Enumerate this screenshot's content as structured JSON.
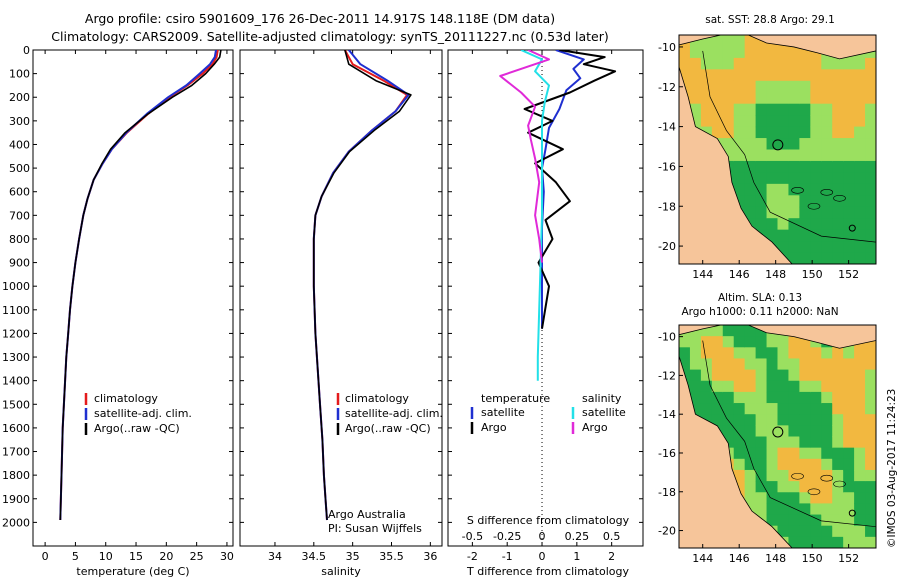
{
  "header": {
    "title_line1": "Argo profile: csiro 5901609_176 26-Dec-2011 14.917S 148.118E (DM data)",
    "title_line2": "Climatology: CARS2009. Satellite-adjusted climatology: synTS_20111227.nc (0.53d later)"
  },
  "colors": {
    "climatology": "#e41a1c",
    "satellite": "#1f2fd0",
    "argo": "#000000",
    "satellite_s": "#22e0e8",
    "argo_s": "#e02ad8",
    "land": "#f6c59a",
    "ocean_low": "#1fa84a",
    "ocean_mid": "#9be060",
    "ocean_high": "#f2b840"
  },
  "chart_data": [
    {
      "name": "temperature-profile",
      "type": "line",
      "xlabel": "temperature (deg C)",
      "ylabel": "",
      "xlim": [
        -2,
        31
      ],
      "ylim": [
        2100,
        0
      ],
      "xticks": [
        "0",
        "5",
        "10",
        "15",
        "20",
        "25",
        "30"
      ],
      "xtick_values": [
        0,
        5,
        10,
        15,
        20,
        25,
        30
      ],
      "yticks": [
        "0",
        "100",
        "200",
        "300",
        "400",
        "500",
        "600",
        "700",
        "800",
        "900",
        "1000",
        "1100",
        "1200",
        "1300",
        "1400",
        "1500",
        "1600",
        "1700",
        "1800",
        "1900",
        "2000"
      ],
      "ytick_values": [
        0,
        100,
        200,
        300,
        400,
        500,
        600,
        700,
        800,
        900,
        1000,
        1100,
        1200,
        1300,
        1400,
        1500,
        1600,
        1700,
        1800,
        1900,
        2000
      ],
      "legend": [
        "climatology",
        "satellite-adj. clim.",
        "Argo(..raw -QC)"
      ],
      "series": [
        {
          "name": "climatology",
          "x": [
            28.5,
            28.3,
            27.6,
            26.0,
            23.5,
            20.5,
            17.0,
            13.5,
            11.0,
            9.5,
            8.0,
            7.0,
            6.3,
            5.6,
            5.0,
            4.5,
            4.1,
            3.8,
            3.5,
            3.3,
            3.1,
            2.9,
            2.8,
            2.7,
            2.5
          ],
          "y": [
            0,
            30,
            60,
            100,
            150,
            200,
            270,
            350,
            420,
            480,
            550,
            630,
            700,
            800,
            900,
            1000,
            1100,
            1200,
            1300,
            1400,
            1500,
            1600,
            1700,
            1800,
            1990
          ]
        },
        {
          "name": "satellite-adj. clim.",
          "x": [
            28.2,
            28.0,
            27.2,
            25.5,
            23.3,
            20.3,
            16.8,
            13.4,
            11.0,
            9.5,
            8.0,
            7.0,
            6.3,
            5.6,
            5.0,
            4.5,
            4.1,
            3.8,
            3.5,
            3.3,
            3.1,
            2.9,
            2.8,
            2.7,
            2.5
          ],
          "y": [
            0,
            30,
            60,
            100,
            150,
            200,
            270,
            350,
            420,
            480,
            550,
            630,
            700,
            800,
            900,
            1000,
            1100,
            1200,
            1300,
            1400,
            1500,
            1600,
            1700,
            1800,
            1990
          ]
        },
        {
          "name": "Argo(..raw -QC)",
          "x": [
            29.0,
            28.8,
            27.9,
            26.5,
            24.2,
            21.0,
            17.0,
            13.2,
            10.8,
            9.4,
            8.0,
            7.0,
            6.3,
            5.6,
            5.0,
            4.5,
            4.1,
            3.8,
            3.5,
            3.3,
            3.1,
            2.9,
            2.8,
            2.7,
            2.5
          ],
          "y": [
            0,
            30,
            60,
            100,
            150,
            200,
            270,
            350,
            420,
            480,
            550,
            630,
            700,
            800,
            900,
            1000,
            1100,
            1200,
            1300,
            1400,
            1500,
            1600,
            1700,
            1800,
            1990
          ]
        }
      ]
    },
    {
      "name": "salinity-profile",
      "type": "line",
      "xlabel": "salinity",
      "xlim": [
        33.55,
        36.15
      ],
      "ylim": [
        2100,
        0
      ],
      "xticks": [
        "34",
        "34.5",
        "35",
        "35.5",
        "36"
      ],
      "xtick_values": [
        34,
        34.5,
        35,
        35.5,
        36
      ],
      "legend": [
        "climatology",
        "satellite-adj. clim.",
        "Argo(..raw -QC)"
      ],
      "annotation_line1": "Argo Australia",
      "annotation_line2": "PI: Susan Wijffels",
      "series": [
        {
          "name": "climatology",
          "x": [
            34.9,
            35.0,
            35.4,
            35.7,
            35.55,
            35.25,
            34.95,
            34.75,
            34.6,
            34.52,
            34.5,
            34.5,
            34.52,
            34.55,
            34.58,
            34.61,
            34.63,
            34.65,
            34.67
          ],
          "y": [
            0,
            60,
            130,
            190,
            260,
            340,
            430,
            520,
            620,
            700,
            800,
            1000,
            1200,
            1350,
            1500,
            1650,
            1800,
            1900,
            1990
          ]
        },
        {
          "name": "satellite-adj. clim.",
          "x": [
            34.95,
            35.1,
            35.45,
            35.72,
            35.55,
            35.25,
            34.95,
            34.75,
            34.6,
            34.52,
            34.5,
            34.5,
            34.52,
            34.55,
            34.58,
            34.61,
            34.63,
            34.65,
            34.67
          ],
          "y": [
            0,
            60,
            130,
            190,
            260,
            340,
            430,
            520,
            620,
            700,
            800,
            1000,
            1200,
            1350,
            1500,
            1650,
            1800,
            1900,
            1990
          ]
        },
        {
          "name": "Argo(..raw -QC)",
          "x": [
            34.9,
            34.95,
            35.3,
            35.75,
            35.6,
            35.28,
            34.96,
            34.76,
            34.6,
            34.52,
            34.5,
            34.5,
            34.52,
            34.55,
            34.58,
            34.61,
            34.63,
            34.65,
            34.67
          ],
          "y": [
            0,
            60,
            130,
            190,
            260,
            340,
            430,
            520,
            620,
            700,
            800,
            1000,
            1200,
            1350,
            1500,
            1650,
            1800,
            1900,
            1990
          ]
        }
      ]
    },
    {
      "name": "difference-profile",
      "type": "line",
      "xlabel": "T difference from climatology",
      "xlabel_top": "S difference from climatology",
      "xlim": [
        -2.7,
        2.9
      ],
      "ylim": [
        2100,
        0
      ],
      "xticks": [
        "-2",
        "-1",
        "0",
        "1",
        "2"
      ],
      "xtick_values": [
        -2,
        -1,
        0,
        1,
        2
      ],
      "s_ticks": [
        "-0.5",
        "-0.25",
        "0",
        "0.25",
        "0.5"
      ],
      "s_tick_values": [
        -0.5,
        -0.25,
        0,
        0.25,
        0.5
      ],
      "legend_temperature_title": "temperature",
      "legend_salinity_title": "salinity",
      "legend_satellite": "satellite",
      "legend_argo": "Argo",
      "series": [
        {
          "name": "T satellite",
          "x": [
            0.4,
            1.2,
            0.9,
            1.1,
            0.7,
            0.5,
            0.2,
            0.1,
            0.0,
            0.05,
            0.0,
            0.0,
            0.0,
            0.0
          ],
          "y": [
            0,
            40,
            80,
            120,
            170,
            250,
            330,
            420,
            500,
            600,
            750,
            900,
            1050,
            1180
          ]
        },
        {
          "name": "T Argo",
          "x": [
            0.5,
            1.8,
            1.2,
            2.1,
            1.5,
            0.8,
            -0.5,
            0.3,
            -0.4,
            0.6,
            -0.2,
            0.4,
            0.8,
            0.1,
            0.3,
            -0.1,
            0.2,
            0.0
          ],
          "y": [
            0,
            30,
            60,
            90,
            130,
            180,
            250,
            300,
            350,
            420,
            480,
            560,
            640,
            720,
            800,
            900,
            1000,
            1180
          ]
        },
        {
          "name": "S satellite",
          "x": [
            -0.15,
            0.0,
            -0.05,
            0.05,
            0.02,
            0.0,
            0.0,
            0.0,
            0.0,
            -0.01,
            -0.02,
            -0.03,
            -0.03
          ],
          "y": [
            0,
            40,
            90,
            150,
            220,
            300,
            400,
            550,
            700,
            900,
            1100,
            1300,
            1400
          ]
        },
        {
          "name": "S Argo",
          "x": [
            -0.1,
            0.05,
            -0.3,
            -0.15,
            -0.05,
            -0.1,
            -0.08,
            -0.05,
            -0.02,
            -0.05,
            -0.02,
            0.0
          ],
          "y": [
            0,
            40,
            110,
            180,
            240,
            320,
            380,
            460,
            560,
            700,
            800,
            900
          ]
        }
      ]
    },
    {
      "name": "sst-map",
      "type": "heatmap",
      "title": "sat. SST: 28.8  Argo: 29.1",
      "xlim": [
        142.7,
        153.5
      ],
      "ylim": [
        -20.9,
        -9.4
      ],
      "xticks": [
        "144",
        "146",
        "148",
        "150",
        "152"
      ],
      "xtick_values": [
        144,
        146,
        148,
        150,
        152
      ],
      "yticks": [
        "-10",
        "-12",
        "-14",
        "-16",
        "-18",
        "-20"
      ],
      "ytick_values": [
        -10,
        -12,
        -14,
        -16,
        -18,
        -20
      ],
      "argo_position": [
        148.118,
        -14.917
      ]
    },
    {
      "name": "sla-map",
      "type": "heatmap",
      "title_line1": "Altim. SLA: 0.13",
      "title_line2": "Argo h1000: 0.11 h2000: NaN",
      "xlim": [
        142.7,
        153.5
      ],
      "ylim": [
        -20.9,
        -9.4
      ],
      "xticks": [
        "144",
        "146",
        "148",
        "150",
        "152"
      ],
      "xtick_values": [
        144,
        146,
        148,
        150,
        152
      ],
      "yticks": [
        "-10",
        "-12",
        "-14",
        "-16",
        "-18",
        "-20"
      ],
      "ytick_values": [
        -10,
        -12,
        -14,
        -16,
        -18,
        -20
      ],
      "argo_position": [
        148.118,
        -14.917
      ]
    }
  ],
  "footer": {
    "credit": "©IMOS 03-Aug-2017 11:24:23"
  }
}
